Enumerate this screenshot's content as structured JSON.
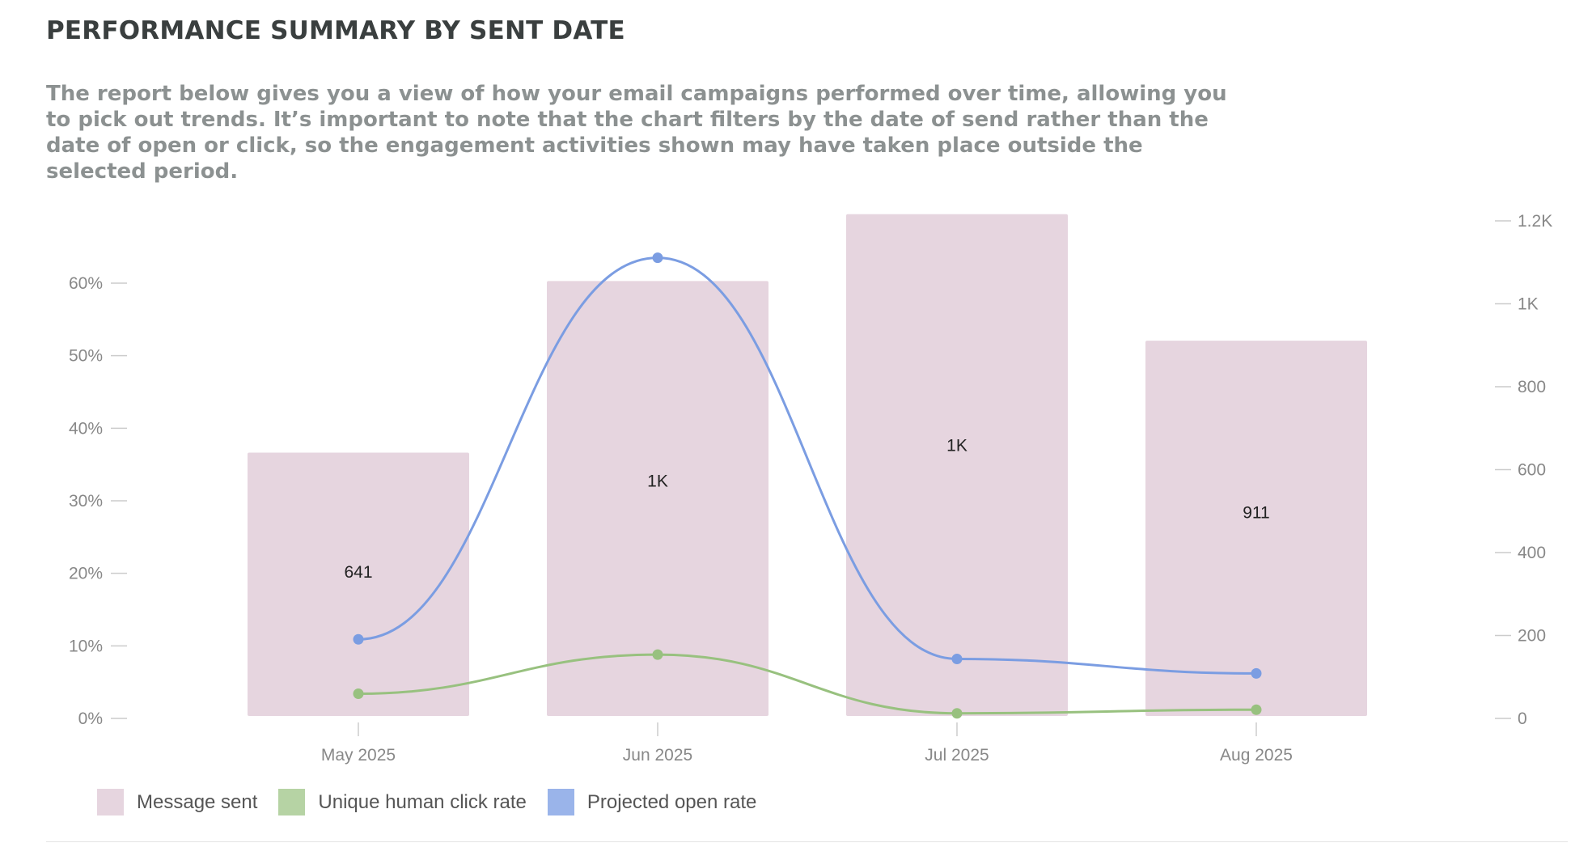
{
  "header": {
    "title": "PERFORMANCE SUMMARY BY SENT DATE",
    "description": "The report below gives you a view of how your email campaigns performed over time, allowing you to pick out trends. It’s important to note that the chart filters by the date of send rather than the date of open or click, so the engagement activities shown may have taken place outside the selected period."
  },
  "colors": {
    "message_sent": "#e6d5df",
    "unique_human_click_rate": "#98c17f",
    "projected_open_rate": "#7b9de2"
  },
  "chart_data": {
    "type": "bar",
    "categories": [
      "May 2025",
      "Jun 2025",
      "Jul 2025",
      "Aug 2025"
    ],
    "left_axis": {
      "ylim": [
        0,
        60
      ],
      "ticks": [
        0,
        10,
        20,
        30,
        40,
        50,
        60
      ],
      "tick_labels": [
        "0%",
        "10%",
        "20%",
        "30%",
        "40%",
        "50%",
        "60%"
      ]
    },
    "right_axis": {
      "ylim": [
        0,
        1200
      ],
      "ticks": [
        0,
        200,
        400,
        600,
        800,
        1000,
        1200
      ],
      "tick_labels": [
        "0",
        "200",
        "400",
        "600",
        "800",
        "1K",
        "1.2K"
      ]
    },
    "series": [
      {
        "name": "Message sent",
        "type": "bar",
        "axis": "right",
        "values": [
          641,
          1055,
          1216,
          911
        ],
        "labels": [
          "641",
          "1K",
          "1K",
          "911"
        ]
      },
      {
        "name": "Unique human click rate",
        "type": "line",
        "axis": "left",
        "values": [
          3.4,
          8.8,
          0.7,
          1.2
        ]
      },
      {
        "name": "Projected open rate",
        "type": "line",
        "axis": "left",
        "values": [
          10.9,
          63.5,
          8.2,
          6.2
        ]
      }
    ],
    "legend": {
      "position": "bottom-left",
      "items": [
        "Message sent",
        "Unique human click rate",
        "Projected open rate"
      ]
    },
    "grid": false
  }
}
